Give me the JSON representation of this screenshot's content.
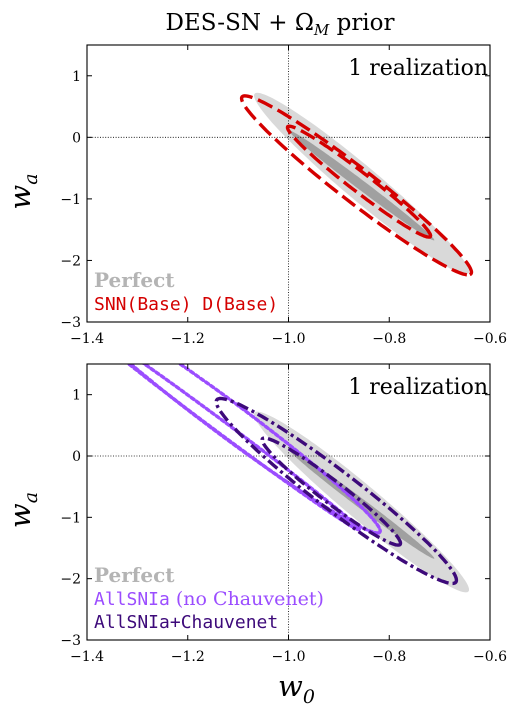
{
  "title": "DES-SN + Ω_M prior",
  "chart_data": [
    {
      "type": "contour",
      "panel": "top",
      "annotation": "1 realization",
      "xlabel": "",
      "ylabel": "w_a",
      "xlim": [
        -1.4,
        -0.6
      ],
      "ylim": [
        -3,
        1.5
      ],
      "xticks": [
        -1.4,
        -1.2,
        -1.0,
        -0.8,
        -0.6
      ],
      "xtick_labels": [
        "−1.4",
        "−1.2",
        "−1.0",
        "−0.8",
        "−0.6"
      ],
      "yticks": [
        -3,
        -2,
        -1,
        0,
        1
      ],
      "ytick_labels": [
        "−3",
        "−2",
        "−1",
        "0",
        "1"
      ],
      "reference_lines": {
        "w0": -1.0,
        "wa": 0.0
      },
      "legend": [
        {
          "label": "Perfect",
          "color": "#b4b4b4",
          "font": "serif-bold"
        },
        {
          "label": "SNN(Base) D(Base)",
          "color": "#d40000",
          "font": "mono"
        }
      ],
      "series": [
        {
          "name": "Perfect",
          "style": "filled",
          "color_inner": "#a0a0a0",
          "color_outer": "#d9d9d9",
          "contours": [
            {
              "level": "1σ",
              "center": [
                -0.855,
                -0.78
              ],
              "semi_major": [
                0.144,
                -0.894
              ],
              "semi_minor": [
                0.012,
                0.022
              ]
            },
            {
              "level": "2σ",
              "center": [
                -0.855,
                -0.75
              ],
              "semi_major": [
                0.21,
                -1.47
              ],
              "semi_minor": [
                0.038,
                0.1
              ]
            }
          ]
        },
        {
          "name": "SNN(Base) D(Base)",
          "style": "dashed",
          "color": "#d40000",
          "contours": [
            {
              "level": "1σ",
              "center": [
                -0.86,
                -0.72
              ],
              "semi_major": [
                0.14,
                -0.9
              ],
              "semi_minor": [
                0.024,
                0.045
              ]
            },
            {
              "level": "2σ",
              "center": [
                -0.865,
                -0.78
              ],
              "semi_major": [
                0.225,
                -1.45
              ],
              "semi_minor": [
                0.038,
                0.11
              ]
            }
          ]
        }
      ]
    },
    {
      "type": "contour",
      "panel": "bottom",
      "annotation": "1 realization",
      "xlabel": "w_0",
      "ylabel": "w_a",
      "xlim": [
        -1.4,
        -0.6
      ],
      "ylim": [
        -3,
        1.5
      ],
      "xticks": [
        -1.4,
        -1.2,
        -1.0,
        -0.8,
        -0.6
      ],
      "xtick_labels": [
        "−1.4",
        "−1.2",
        "−1.0",
        "−0.8",
        "−0.6"
      ],
      "yticks": [
        -3,
        -2,
        -1,
        0,
        1
      ],
      "ytick_labels": [
        "−3",
        "−2",
        "−1",
        "0",
        "1"
      ],
      "reference_lines": {
        "w0": -1.0,
        "wa": 0.0
      },
      "legend": [
        {
          "label": "Perfect",
          "color": "#b4b4b4",
          "font": "serif-bold"
        },
        {
          "label_mono": "AllSNIa",
          "label_serif": " (no Chauvenet)",
          "color": "#9b4dff",
          "font": "mixed"
        },
        {
          "label": "AllSNIa+Chauvenet",
          "color": "#3d0a7a",
          "font": "mono"
        }
      ],
      "series": [
        {
          "name": "Perfect",
          "style": "filled",
          "color_inner": "#a0a0a0",
          "color_outer": "#d9d9d9",
          "contours": [
            {
              "level": "1σ",
              "center": [
                -0.855,
                -0.78
              ],
              "semi_major": [
                0.144,
                -0.894
              ],
              "semi_minor": [
                0.012,
                0.022
              ]
            },
            {
              "level": "2σ",
              "center": [
                -0.855,
                -0.75
              ],
              "semi_major": [
                0.21,
                -1.47
              ],
              "semi_minor": [
                0.038,
                0.1
              ]
            }
          ]
        },
        {
          "name": "AllSNIa (no Chauvenet)",
          "style": "dotted",
          "color": "#9b4dff",
          "contours": [
            {
              "level": "1σ",
              "center": [
                -1.13,
                0.45
              ],
              "semi_major": [
                0.27,
                -1.65
              ],
              "semi_minor": [
                0.012,
                0.05
              ]
            },
            {
              "level": "2σ",
              "center": [
                -1.12,
                0.6
              ],
              "semi_major": [
                0.3,
                -1.85
              ],
              "semi_minor": [
                0.035,
                0.13
              ]
            }
          ]
        },
        {
          "name": "AllSNIa+Chauvenet",
          "style": "dashdot",
          "color": "#3d0a7a",
          "contours": [
            {
              "level": "1σ",
              "center": [
                -0.915,
                -0.58
              ],
              "semi_major": [
                0.135,
                -0.87
              ],
              "semi_minor": [
                0.025,
                0.07
              ]
            },
            {
              "level": "2σ",
              "center": [
                -0.905,
                -0.57
              ],
              "semi_major": [
                0.235,
                -1.5
              ],
              "semi_minor": [
                0.04,
                0.15
              ]
            }
          ]
        }
      ]
    }
  ]
}
